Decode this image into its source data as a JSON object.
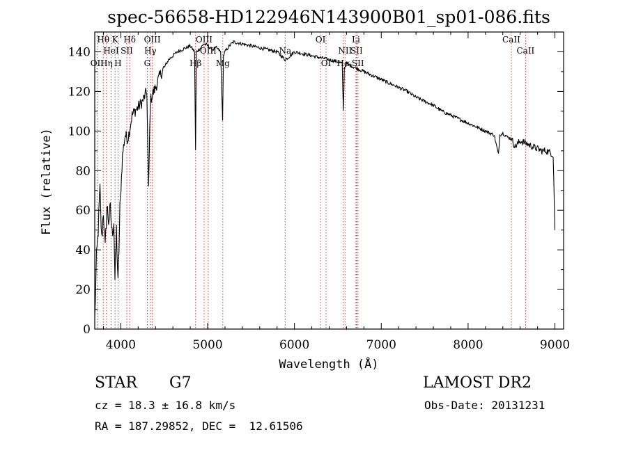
{
  "chart_data": {
    "type": "line",
    "title": "spec-56658-HD122946N143900B01_sp01-086.fits",
    "xlabel": "Wavelength (Å)",
    "ylabel": "Flux (relative)",
    "xlim": [
      3700,
      9100
    ],
    "ylim": [
      0,
      150
    ],
    "xticks": [
      4000,
      5000,
      6000,
      7000,
      8000,
      9000
    ],
    "yticks": [
      0,
      20,
      40,
      60,
      80,
      100,
      120,
      140
    ],
    "grid": false,
    "series": [
      {
        "x": [
          3700,
          3720,
          3740,
          3760,
          3780,
          3800,
          3820,
          3840,
          3860,
          3880,
          3900,
          3920,
          3933,
          3950,
          3968,
          3990,
          4020,
          4050,
          4080,
          4100,
          4130,
          4160,
          4200,
          4250,
          4300,
          4320,
          4340,
          4360,
          4400,
          4450,
          4500,
          4550,
          4600,
          4650,
          4700,
          4750,
          4800,
          4850,
          4861,
          4870,
          4920,
          4957,
          5007,
          5050,
          5100,
          5150,
          5172,
          5183,
          5200,
          5250,
          5300,
          5400,
          5500,
          5600,
          5700,
          5800,
          5893,
          5950,
          6000,
          6100,
          6200,
          6300,
          6400,
          6500,
          6550,
          6563,
          6575,
          6600,
          6650,
          6700,
          6750,
          6800,
          6900,
          7000,
          7100,
          7200,
          7300,
          7400,
          7500,
          7600,
          7700,
          7800,
          7900,
          8000,
          8100,
          8200,
          8300,
          8350,
          8365,
          8400,
          8450,
          8500,
          8542,
          8600,
          8662,
          8700,
          8750,
          8800,
          8850,
          8900,
          8950,
          8980,
          9000
        ],
        "y": [
          5,
          35,
          50,
          70,
          45,
          60,
          40,
          62,
          55,
          60,
          48,
          55,
          25,
          50,
          22,
          60,
          88,
          98,
          96,
          100,
          108,
          110,
          112,
          115,
          120,
          70,
          115,
          118,
          122,
          128,
          132,
          136,
          138,
          140,
          141,
          142,
          143,
          140,
          90,
          140,
          142,
          144,
          143,
          141,
          142,
          140,
          105,
          138,
          140,
          143,
          145,
          144,
          143,
          142,
          141,
          140,
          136,
          138,
          140,
          139,
          138,
          137,
          136,
          135,
          134,
          110,
          132,
          134,
          133,
          132,
          131,
          130,
          128,
          126,
          124,
          122,
          120,
          117,
          115,
          113,
          110,
          108,
          106,
          104,
          102,
          100,
          98,
          88,
          98,
          99,
          97,
          96,
          92,
          95,
          94,
          93,
          92,
          91,
          90,
          90,
          89,
          88,
          50
        ],
        "values_note": ""
      }
    ],
    "line_markers": [
      {
        "label": "Hθ",
        "x": 3798,
        "row": 1
      },
      {
        "label": "OII",
        "x": 3727,
        "row": 3
      },
      {
        "label": "K",
        "x": 3934,
        "row": 1
      },
      {
        "label": "HeI",
        "x": 3889,
        "row": 2
      },
      {
        "label": "Hη",
        "x": 3835,
        "row": 3
      },
      {
        "label": "H",
        "x": 3968,
        "row": 3
      },
      {
        "label": "Hδ",
        "x": 4102,
        "row": 1
      },
      {
        "label": "SII",
        "x": 4069,
        "row": 2
      },
      {
        "label": "OIII",
        "x": 4363,
        "row": 1
      },
      {
        "label": "Hγ",
        "x": 4340,
        "row": 2
      },
      {
        "label": "G",
        "x": 4305,
        "row": 3
      },
      {
        "label": "OIII",
        "x": 4959,
        "row": 1
      },
      {
        "label": "OIII",
        "x": 5007,
        "row": 2
      },
      {
        "label": "Hβ",
        "x": 4861,
        "row": 3
      },
      {
        "label": "Mg",
        "x": 5175,
        "row": 3
      },
      {
        "label": "Na",
        "x": 5893,
        "row": 2
      },
      {
        "label": "OI",
        "x": 6300,
        "row": 1
      },
      {
        "label": "OI",
        "x": 6364,
        "row": 3
      },
      {
        "label": "Li",
        "x": 6708,
        "row": 1
      },
      {
        "label": "NII",
        "x": 6583,
        "row": 2
      },
      {
        "label": "SII",
        "x": 6716,
        "row": 2
      },
      {
        "label": "Hα",
        "x": 6563,
        "row": 3
      },
      {
        "label": "SII",
        "x": 6731,
        "row": 3
      },
      {
        "label": "CaII",
        "x": 8498,
        "row": 1
      },
      {
        "label": "CaII",
        "x": 8662,
        "row": 2
      }
    ]
  },
  "info": {
    "object_class": "STAR",
    "subclass": "G7",
    "survey": "LAMOST DR2",
    "cz": "cz = 18.3 ± 16.8 km/s",
    "obs_date": "Obs-Date: 20131231",
    "coords": "RA = 187.29852, DEC =  12.61506"
  }
}
